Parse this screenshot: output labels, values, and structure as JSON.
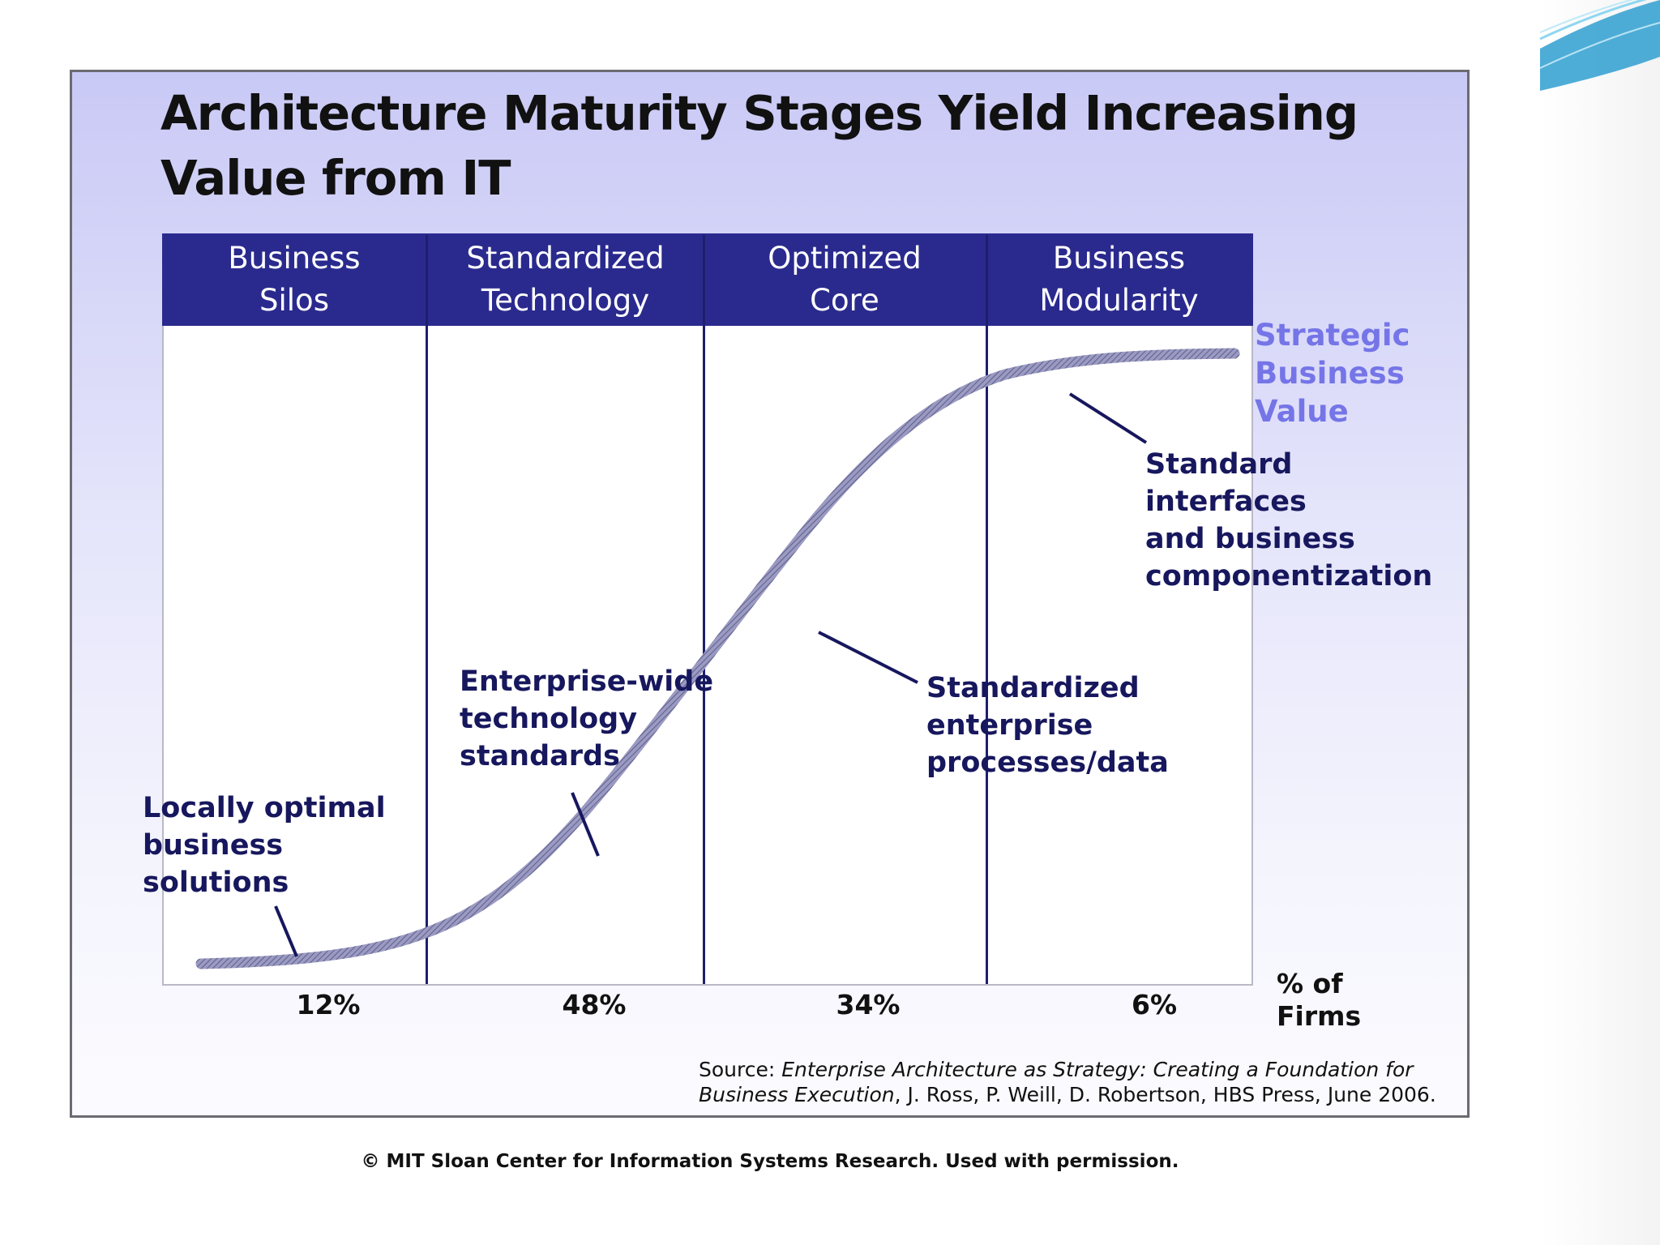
{
  "title": "Architecture Maturity Stages Yield Increasing Value from IT",
  "stages": [
    {
      "line1": "Business",
      "line2": "Silos",
      "firms_pct": "12%"
    },
    {
      "line1": "Standardized",
      "line2": "Technology",
      "firms_pct": "48%"
    },
    {
      "line1": "Optimized",
      "line2": "Core",
      "firms_pct": "34%"
    },
    {
      "line1": "Business",
      "line2": "Modularity",
      "firms_pct": "6%"
    }
  ],
  "y_axis_label": {
    "line1": "Strategic",
    "line2": "Business",
    "line3": "Value"
  },
  "x_axis_label": {
    "line1": "% of",
    "line2": "Firms"
  },
  "annotations": {
    "silos": {
      "line1": "Locally optimal",
      "line2": "business",
      "line3": "solutions"
    },
    "technology": {
      "line1": "Enterprise-wide",
      "line2": "technology",
      "line3": "standards"
    },
    "core": {
      "line1": "Standardized",
      "line2": "enterprise",
      "line3": "processes/data"
    },
    "modularity": {
      "line1": "Standard",
      "line2": "interfaces",
      "line3": "and business",
      "line4": "componentization"
    }
  },
  "source": {
    "prefix": "Source: ",
    "italic_line1": "Enterprise Architecture as Strategy: Creating a Foundation for",
    "italic_line2": "Business Execution",
    "rest_line2": ",  J. Ross, P. Weill, D. Robertson, HBS Press, June 2006."
  },
  "copyright": "© MIT Sloan Center for Information Systems Research. Used with permission.",
  "colors": {
    "header": "#2a2a8e",
    "curve": "#8a8ab8",
    "annotation_text": "#17175e",
    "value_label": "#7575e8",
    "decoration": "#39aedc"
  }
}
